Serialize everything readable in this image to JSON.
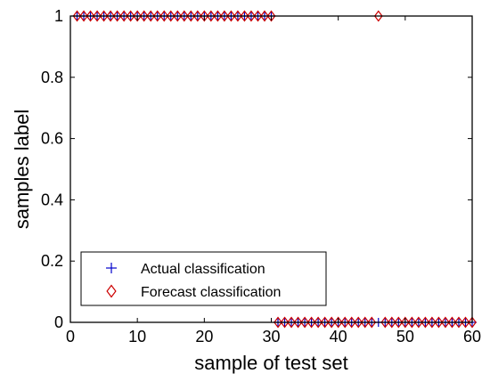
{
  "chart_data": {
    "type": "scatter",
    "title": "",
    "xlabel": "sample of test set",
    "ylabel": "samples label",
    "xlim": [
      0,
      60
    ],
    "ylim": [
      0,
      1
    ],
    "xticks": [
      "0",
      "10",
      "20",
      "30",
      "40",
      "50",
      "60"
    ],
    "yticks": [
      "0",
      "0.2",
      "0.4",
      "0.6",
      "0.8",
      "1"
    ],
    "grid": false,
    "legend_position": "bottom-left",
    "series": [
      {
        "name": "Actual classification",
        "marker": "plus",
        "color": "#0000cc",
        "x": [
          1,
          2,
          3,
          4,
          5,
          6,
          7,
          8,
          9,
          10,
          11,
          12,
          13,
          14,
          15,
          16,
          17,
          18,
          19,
          20,
          21,
          22,
          23,
          24,
          25,
          26,
          27,
          28,
          29,
          30,
          31,
          32,
          33,
          34,
          35,
          36,
          37,
          38,
          39,
          40,
          41,
          42,
          43,
          44,
          45,
          46,
          47,
          48,
          49,
          50,
          51,
          52,
          53,
          54,
          55,
          56,
          57,
          58,
          59,
          60
        ],
        "y": [
          1,
          1,
          1,
          1,
          1,
          1,
          1,
          1,
          1,
          1,
          1,
          1,
          1,
          1,
          1,
          1,
          1,
          1,
          1,
          1,
          1,
          1,
          1,
          1,
          1,
          1,
          1,
          1,
          1,
          1,
          0,
          0,
          0,
          0,
          0,
          0,
          0,
          0,
          0,
          0,
          0,
          0,
          0,
          0,
          0,
          0,
          0,
          0,
          0,
          0,
          0,
          0,
          0,
          0,
          0,
          0,
          0,
          0,
          0,
          0
        ]
      },
      {
        "name": "Forecast classification",
        "marker": "diamond",
        "color": "#cc0000",
        "x": [
          1,
          2,
          3,
          4,
          5,
          6,
          7,
          8,
          9,
          10,
          11,
          12,
          13,
          14,
          15,
          16,
          17,
          18,
          19,
          20,
          21,
          22,
          23,
          24,
          25,
          26,
          27,
          28,
          29,
          30,
          31,
          32,
          33,
          34,
          35,
          36,
          37,
          38,
          39,
          40,
          41,
          42,
          43,
          44,
          45,
          46,
          47,
          48,
          49,
          50,
          51,
          52,
          53,
          54,
          55,
          56,
          57,
          58,
          59,
          60
        ],
        "y": [
          1,
          1,
          1,
          1,
          1,
          1,
          1,
          1,
          1,
          1,
          1,
          1,
          1,
          1,
          1,
          1,
          1,
          1,
          1,
          1,
          1,
          1,
          1,
          1,
          1,
          1,
          1,
          1,
          1,
          1,
          0,
          0,
          0,
          0,
          0,
          0,
          0,
          0,
          0,
          0,
          0,
          0,
          0,
          0,
          0,
          1,
          0,
          0,
          0,
          0,
          0,
          0,
          0,
          0,
          0,
          0,
          0,
          0,
          0,
          0
        ]
      }
    ]
  }
}
